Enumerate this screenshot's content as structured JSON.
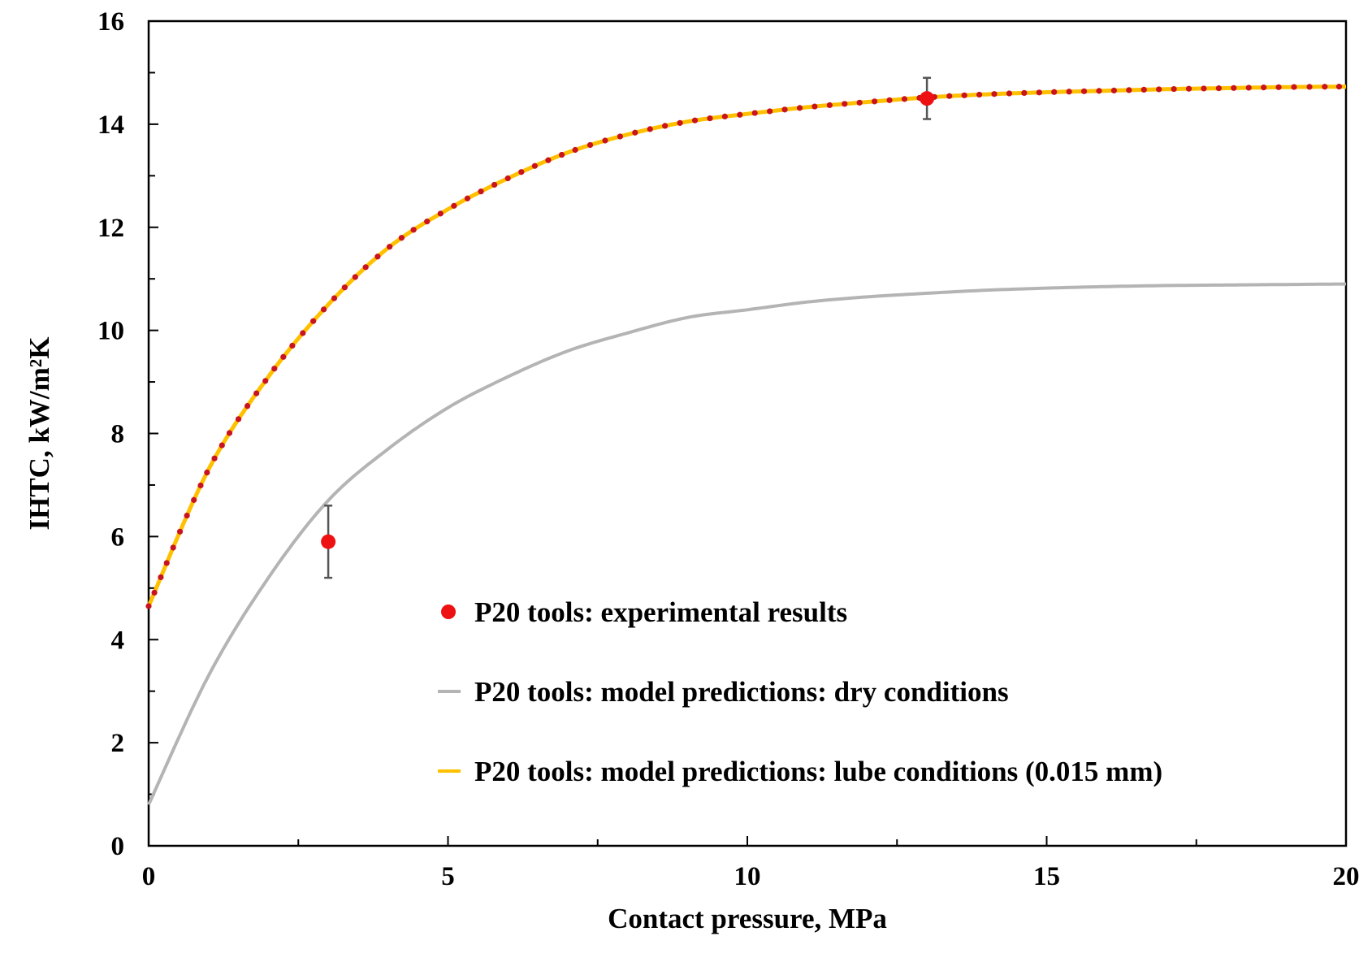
{
  "chart_data": {
    "type": "line",
    "xlabel": "Contact pressure, MPa",
    "ylabel": "IHTC, kW/m²K",
    "xlim": [
      0,
      20
    ],
    "ylim": [
      0,
      16
    ],
    "x_ticks": [
      0,
      5,
      10,
      15,
      20
    ],
    "y_ticks": [
      0,
      2,
      4,
      6,
      8,
      10,
      12,
      14,
      16
    ],
    "x_tick_labels": [
      "0",
      "5",
      "10",
      "15",
      "20"
    ],
    "y_tick_labels": [
      "0",
      "2",
      "4",
      "6",
      "8",
      "10",
      "12",
      "14",
      "16"
    ],
    "grid": false,
    "legend_placement": "bottom-right",
    "series": [
      {
        "name": "P20 tools: experimental results",
        "kind": "scatter",
        "color": "#ee1111",
        "points": [
          {
            "x": 3,
            "y": 5.9,
            "err": 0.7
          },
          {
            "x": 13,
            "y": 14.5,
            "err": 0.4
          }
        ]
      },
      {
        "name": "P20 tools: model predictions: dry conditions",
        "kind": "line",
        "color": "#b4b4b4",
        "x": [
          0,
          1,
          2,
          3,
          4,
          5,
          6,
          7,
          8,
          9,
          10,
          11,
          12,
          13,
          14,
          15,
          16,
          17,
          18,
          19,
          20
        ],
        "y": [
          0.8,
          3.3,
          5.2,
          6.7,
          7.7,
          8.5,
          9.1,
          9.6,
          9.95,
          10.25,
          10.4,
          10.55,
          10.65,
          10.72,
          10.78,
          10.82,
          10.85,
          10.87,
          10.88,
          10.89,
          10.9
        ]
      },
      {
        "name": "P20 tools: model predictions: lube conditions (0.015 mm)",
        "kind": "line",
        "color": "#ffc000",
        "marker_color": "#c8141e",
        "x": [
          0,
          1,
          2,
          3,
          4,
          5,
          6,
          7,
          8,
          9,
          10,
          11,
          12,
          13,
          14,
          15,
          16,
          17,
          18,
          19,
          20
        ],
        "y": [
          4.65,
          7.3,
          9.1,
          10.5,
          11.6,
          12.35,
          12.95,
          13.45,
          13.8,
          14.05,
          14.2,
          14.33,
          14.43,
          14.52,
          14.58,
          14.62,
          14.65,
          14.68,
          14.7,
          14.72,
          14.73
        ]
      }
    ]
  }
}
